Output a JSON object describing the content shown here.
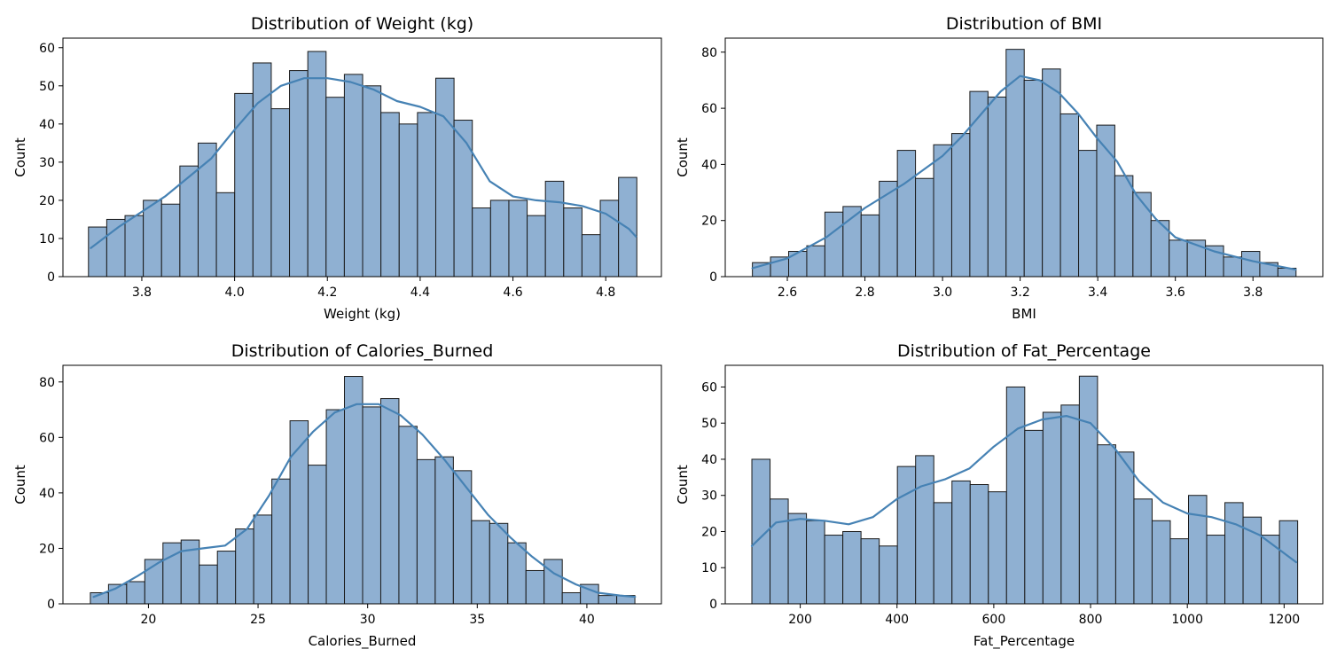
{
  "colors": {
    "bar": "#8fb0d2",
    "edge": "#1a1a1a",
    "kde": "#4682b4"
  },
  "chart_data": [
    {
      "type": "bar",
      "title": "Distribution of Weight (kg)",
      "xlabel": "Weight (kg)",
      "ylabel": "Count",
      "kde": true,
      "bin_start": 3.685,
      "bin_width": 0.0394,
      "values": [
        13,
        15,
        16,
        20,
        19,
        29,
        35,
        22,
        48,
        56,
        44,
        54,
        59,
        47,
        53,
        50,
        43,
        40,
        43,
        52,
        41,
        18,
        20,
        20,
        16,
        25,
        18,
        11,
        20,
        26
      ],
      "xlim": [
        3.63,
        4.92
      ],
      "ylim": [
        0,
        62.5
      ],
      "xticks": [
        3.8,
        4.0,
        4.2,
        4.4,
        4.6,
        4.8
      ],
      "xtick_labels": [
        "3.8",
        "4.0",
        "4.2",
        "4.4",
        "4.6",
        "4.8"
      ],
      "yticks": [
        0,
        10,
        20,
        30,
        40,
        50,
        60
      ],
      "ytick_labels": [
        "0",
        "10",
        "20",
        "30",
        "40",
        "50",
        "60"
      ],
      "kde_curve": {
        "x": [
          3.69,
          3.75,
          3.8,
          3.85,
          3.9,
          3.95,
          4.0,
          4.05,
          4.1,
          4.15,
          4.2,
          4.25,
          4.3,
          4.35,
          4.4,
          4.45,
          4.5,
          4.55,
          4.6,
          4.65,
          4.7,
          4.75,
          4.8,
          4.85,
          4.865
        ],
        "y": [
          7.5,
          13,
          17,
          21,
          26,
          31,
          38.5,
          45.5,
          50,
          52,
          52,
          51,
          49,
          46,
          44.5,
          42,
          35,
          25,
          21,
          20,
          19.5,
          18.5,
          16.5,
          12.5,
          10.5
        ]
      }
    },
    {
      "type": "bar",
      "title": "Distribution of BMI",
      "xlabel": "BMI",
      "ylabel": "Count",
      "kde": true,
      "bin_start": 2.51,
      "bin_width": 0.0467,
      "values": [
        5,
        7,
        9,
        11,
        23,
        25,
        22,
        34,
        45,
        35,
        47,
        51,
        66,
        64,
        81,
        70,
        74,
        58,
        45,
        54,
        36,
        30,
        20,
        13,
        13,
        11,
        7,
        9,
        5,
        3
      ],
      "xlim": [
        2.44,
        3.98
      ],
      "ylim": [
        0,
        85
      ],
      "xticks": [
        2.6,
        2.8,
        3.0,
        3.2,
        3.4,
        3.6,
        3.8
      ],
      "xtick_labels": [
        "2.6",
        "2.8",
        "3.0",
        "3.2",
        "3.4",
        "3.6",
        "3.8"
      ],
      "yticks": [
        0,
        20,
        40,
        60,
        80
      ],
      "ytick_labels": [
        "0",
        "20",
        "40",
        "60",
        "80"
      ],
      "kde_curve": {
        "x": [
          2.51,
          2.6,
          2.7,
          2.8,
          2.9,
          3.0,
          3.05,
          3.1,
          3.15,
          3.2,
          3.25,
          3.3,
          3.35,
          3.4,
          3.45,
          3.5,
          3.55,
          3.6,
          3.7,
          3.8,
          3.91
        ],
        "y": [
          3,
          6.5,
          14,
          24.5,
          33,
          43,
          50,
          58,
          66,
          71.5,
          70,
          65.5,
          58,
          49,
          41,
          29,
          20.5,
          14,
          9,
          5.5,
          2.5
        ]
      }
    },
    {
      "type": "bar",
      "title": "Distribution of Calories_Burned",
      "xlabel": "Calories_Burned",
      "ylabel": "Count",
      "kde": true,
      "bin_start": 17.35,
      "bin_width": 0.828,
      "values": [
        4,
        7,
        8,
        16,
        22,
        23,
        14,
        19,
        27,
        32,
        45,
        66,
        50,
        70,
        82,
        71,
        74,
        64,
        52,
        53,
        48,
        30,
        29,
        22,
        12,
        16,
        4,
        7,
        3,
        3
      ],
      "xlim": [
        16.1,
        43.4
      ],
      "ylim": [
        0,
        86
      ],
      "xticks": [
        20,
        25,
        30,
        35,
        40
      ],
      "xtick_labels": [
        "20",
        "25",
        "30",
        "35",
        "40"
      ],
      "yticks": [
        0,
        20,
        40,
        60,
        80
      ],
      "ytick_labels": [
        "0",
        "20",
        "40",
        "60",
        "80"
      ],
      "kde_curve": {
        "x": [
          17.5,
          18.5,
          19.5,
          20.5,
          21.5,
          22.5,
          23.5,
          24.5,
          25.5,
          26.5,
          27.5,
          28.5,
          29.5,
          30.5,
          31.5,
          32.5,
          33.5,
          34.5,
          35.5,
          36.5,
          37.5,
          38.5,
          39.5,
          40.5,
          41.5,
          42.2
        ],
        "y": [
          2.5,
          5.5,
          10,
          15,
          19,
          20,
          21,
          27,
          39,
          53,
          62,
          69,
          72,
          72,
          68,
          61,
          52,
          42,
          32,
          24,
          17,
          11,
          7,
          4,
          3,
          2.5
        ]
      }
    },
    {
      "type": "bar",
      "title": "Distribution of Fat_Percentage",
      "xlabel": "Fat_Percentage",
      "ylabel": "Count",
      "kde": true,
      "bin_start": 100,
      "bin_width": 37.6,
      "values": [
        40,
        29,
        25,
        23,
        19,
        20,
        18,
        16,
        38,
        41,
        28,
        34,
        33,
        31,
        60,
        48,
        53,
        55,
        63,
        44,
        42,
        29,
        23,
        18,
        30,
        19,
        28,
        24,
        19,
        23
      ],
      "xlim": [
        45,
        1280
      ],
      "ylim": [
        0,
        66
      ],
      "xticks": [
        200,
        400,
        600,
        800,
        1000,
        1200
      ],
      "xtick_labels": [
        "200",
        "400",
        "600",
        "800",
        "1000",
        "1200"
      ],
      "yticks": [
        0,
        10,
        20,
        30,
        40,
        50,
        60
      ],
      "ytick_labels": [
        "0",
        "10",
        "20",
        "30",
        "40",
        "50",
        "60"
      ],
      "kde_curve": {
        "x": [
          100,
          150,
          200,
          250,
          300,
          350,
          400,
          450,
          500,
          550,
          600,
          650,
          700,
          750,
          800,
          850,
          900,
          950,
          1000,
          1050,
          1100,
          1150,
          1200,
          1225
        ],
        "y": [
          16,
          22.5,
          23.5,
          23,
          22,
          24,
          29,
          32.5,
          34.5,
          37.5,
          43.5,
          48.5,
          51,
          52,
          50,
          43,
          34,
          28,
          25,
          24,
          22,
          19,
          14,
          11.5
        ]
      }
    }
  ]
}
